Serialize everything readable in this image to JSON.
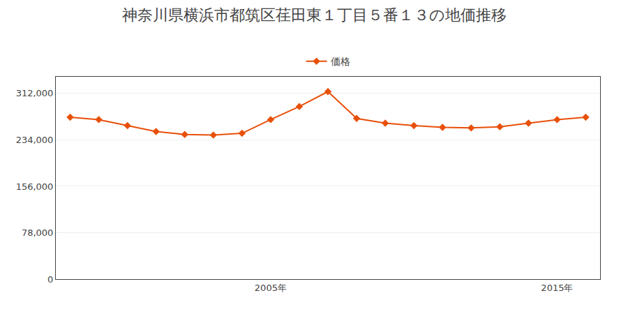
{
  "chart_data": {
    "type": "line",
    "title": "神奈川県横浜市都筑区荏田東１丁目５番１３の地価推移",
    "x": [
      1998,
      1999,
      2000,
      2001,
      2002,
      2003,
      2004,
      2005,
      2006,
      2007,
      2008,
      2009,
      2010,
      2011,
      2012,
      2013,
      2014,
      2015,
      2016
    ],
    "series": [
      {
        "name": "価格",
        "color": "#e8500a",
        "values": [
          272000,
          268000,
          258000,
          248000,
          243000,
          242000,
          245000,
          268000,
          290000,
          315000,
          270000,
          262000,
          258000,
          255000,
          254000,
          256000,
          262000,
          268000,
          272000
        ]
      }
    ],
    "xlim": [
      1997.5,
      2016.5
    ],
    "xticks": [
      {
        "value": 2005,
        "label": "2005年"
      },
      {
        "value": 2015,
        "label": "2015年"
      }
    ],
    "ylim": [
      0,
      340000
    ],
    "yticks": [
      0,
      {
        "value": 78000,
        "label": "78,000"
      },
      {
        "value": 156000,
        "label": "156,000"
      },
      {
        "value": 234000,
        "label": "234,000"
      },
      {
        "value": 312000,
        "label": "312,000"
      }
    ],
    "grid": true,
    "legend": "top",
    "marker": "diamond"
  }
}
